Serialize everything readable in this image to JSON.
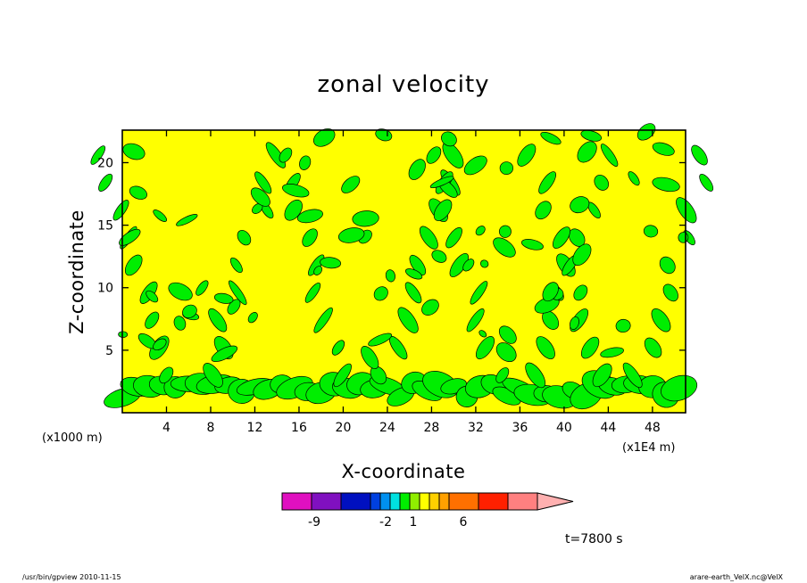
{
  "chart_data": {
    "type": "heatmap",
    "title": "zonal velocity",
    "xlabel": "X-coordinate",
    "ylabel": "Z-coordinate",
    "x_unit": "(x1E4 m)",
    "y_unit": "(x1000 m)",
    "xlim": [
      0,
      51
    ],
    "ylim": [
      0,
      22.6
    ],
    "x_ticks": [
      4,
      8,
      12,
      16,
      20,
      24,
      28,
      32,
      36,
      40,
      44,
      48
    ],
    "y_ticks": [
      5,
      10,
      15,
      20
    ],
    "grid": false,
    "field_regions": [
      {
        "value_range": "1 to 2",
        "color": "#ffff00"
      },
      {
        "value_range": "0 to 1",
        "color": "#00ee00"
      }
    ],
    "colorbar": {
      "colors": [
        "#e010c0",
        "#8010c0",
        "#0010c0",
        "#0040e0",
        "#0090f0",
        "#00e0e0",
        "#00ee00",
        "#90ee00",
        "#ffff00",
        "#ffd000",
        "#ffa000",
        "#ff7000",
        "#ff2000",
        "#ff8080",
        "#ffb0b0"
      ],
      "labels": [
        {
          "text": "-9",
          "at_value": -9
        },
        {
          "text": "-2",
          "at_value": -2
        },
        {
          "text": "1",
          "at_value": 1
        },
        {
          "text": "6",
          "at_value": 6
        }
      ]
    },
    "time_label": "t=7800 s"
  },
  "footer": {
    "left": "/usr/bin/gpview   2010-11-15",
    "right": "arare-earth_VelX.nc@VelX"
  }
}
